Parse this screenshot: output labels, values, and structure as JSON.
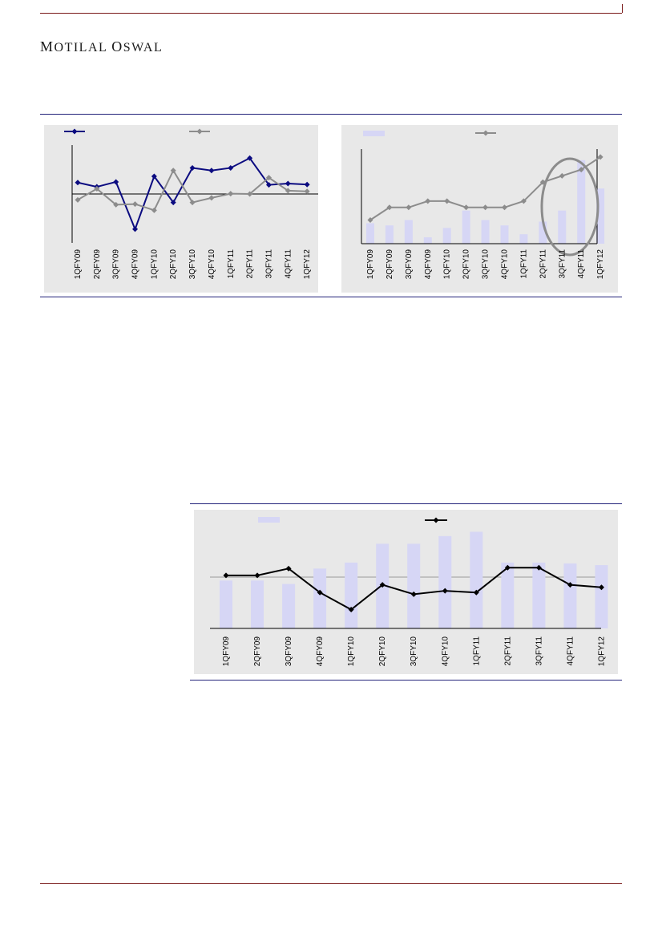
{
  "header": {
    "brand_first": "M",
    "brand_rest": "OTILAL ",
    "brand_first2": "O",
    "brand_rest2": "SWAL"
  },
  "colors": {
    "navy": "#0b0b80",
    "grey": "#8c8c8c",
    "bar_fill": "#d6d6f5",
    "black": "#000000"
  },
  "chart_data": [
    {
      "type": "line",
      "categories": [
        "1QFY09",
        "2QFY09",
        "3QFY09",
        "4QFY09",
        "1QFY10",
        "2QFY10",
        "3QFY10",
        "4QFY10",
        "1QFY11",
        "2QFY11",
        "3QFY11",
        "4QFY11",
        "1QFY12"
      ],
      "series": [
        {
          "color": "#0b0b80",
          "values": [
            3.5,
            2.2,
            3.7,
            -10.8,
            5.4,
            -2.6,
            8.0,
            7.2,
            8.0,
            11.0,
            2.8,
            3.2,
            2.9
          ]
        },
        {
          "color": "#8c8c8c",
          "values": [
            -1.8,
            1.6,
            -3.3,
            -3.1,
            -5.0,
            7.2,
            -2.6,
            -1.2,
            0.1,
            0.0,
            5.0,
            1.0,
            0.8
          ]
        }
      ],
      "ylim": [
        -15,
        15
      ],
      "zero_line": true,
      "legend": "top"
    },
    {
      "type": "bar+line",
      "categories": [
        "1QFY09",
        "2QFY09",
        "3QFY09",
        "4QFY09",
        "1QFY10",
        "2QFY10",
        "3QFY10",
        "4QFY10",
        "1QFY11",
        "2QFY11",
        "3QFY11",
        "4QFY11",
        "1QFY12"
      ],
      "bars": {
        "color": "#d6d6f5",
        "values": [
          6.5,
          5.8,
          7.5,
          2.0,
          5.0,
          10.5,
          7.5,
          5.8,
          3.0,
          7.0,
          10.5,
          26.5,
          17.5
        ]
      },
      "line": {
        "color": "#8c8c8c",
        "values": [
          7.5,
          11.5,
          11.5,
          13.5,
          13.5,
          11.5,
          11.5,
          11.5,
          13.5,
          19.5,
          21.5,
          23.5,
          27.5
        ]
      },
      "ylim": [
        0,
        30
      ],
      "highlight": "3QFY11-1QFY12",
      "legend": "top"
    },
    {
      "type": "bar+line",
      "categories": [
        "1QFY09",
        "2QFY09",
        "3QFY09",
        "4QFY09",
        "1QFY10",
        "2QFY10",
        "3QFY10",
        "4QFY10",
        "1QFY11",
        "2QFY11",
        "3QFY11",
        "4QFY11",
        "1QFY12"
      ],
      "bars": {
        "color": "#d6d6f5",
        "values": [
          56,
          56,
          52,
          70,
          77,
          99,
          99,
          108,
          113,
          77,
          77,
          76,
          74
        ]
      },
      "line": {
        "color": "#000000",
        "values": [
          62,
          62,
          70,
          42,
          22,
          51,
          40,
          44,
          42,
          71,
          71,
          51,
          48
        ]
      },
      "ylim": [
        0,
        120
      ],
      "reference_line": 60,
      "legend": "top"
    }
  ]
}
